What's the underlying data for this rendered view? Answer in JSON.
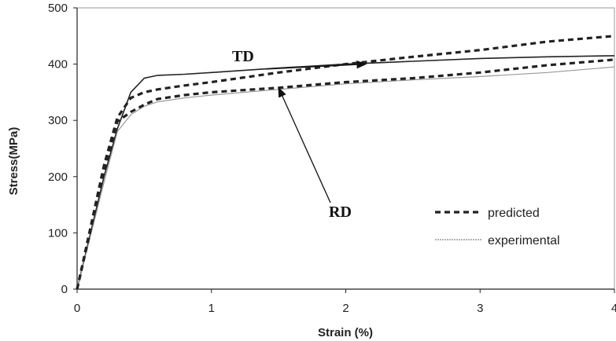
{
  "chart_data": {
    "type": "line",
    "xlabel": "Strain (%)",
    "ylabel": "Stress(MPa)",
    "xlim": [
      0,
      4
    ],
    "ylim": [
      0,
      500
    ],
    "x_ticks": [
      "0",
      "1",
      "2",
      "3",
      "4"
    ],
    "y_ticks": [
      "0",
      "100",
      "200",
      "300",
      "400",
      "500"
    ],
    "grid": false,
    "legend_position": "bottom-right",
    "legend": [
      {
        "label": "predicted",
        "style": "dashed-thick",
        "color": "#222222"
      },
      {
        "label": "experimental",
        "style": "thin-gray",
        "color": "#999999"
      }
    ],
    "annotations": [
      {
        "text": "TD",
        "points_to": [
          2.15,
          400
        ]
      },
      {
        "text": "RD",
        "points_to": [
          1.5,
          358
        ]
      }
    ],
    "series": [
      {
        "direction": "TD",
        "kind": "experimental",
        "color": "#222222",
        "x": [
          0,
          0.1,
          0.2,
          0.3,
          0.4,
          0.5,
          0.6,
          0.8,
          1.0,
          1.5,
          2.0,
          2.5,
          3.0,
          3.5,
          4.0
        ],
        "y": [
          0,
          100,
          200,
          285,
          350,
          375,
          380,
          382,
          385,
          393,
          400,
          405,
          410,
          413,
          415
        ]
      },
      {
        "direction": "TD",
        "kind": "predicted",
        "color": "#222222",
        "x": [
          0,
          0.1,
          0.2,
          0.3,
          0.4,
          0.5,
          0.6,
          0.8,
          1.0,
          1.5,
          2.0,
          2.5,
          3.0,
          3.5,
          4.0
        ],
        "y": [
          0,
          110,
          220,
          305,
          340,
          350,
          355,
          362,
          368,
          385,
          400,
          413,
          425,
          440,
          450
        ]
      },
      {
        "direction": "RD",
        "kind": "experimental",
        "color": "#999999",
        "x": [
          0,
          0.1,
          0.2,
          0.3,
          0.4,
          0.5,
          0.6,
          0.8,
          1.0,
          1.5,
          2.0,
          2.5,
          3.0,
          3.5,
          4.0
        ],
        "y": [
          0,
          95,
          190,
          280,
          310,
          325,
          333,
          340,
          345,
          355,
          365,
          372,
          378,
          385,
          395
        ]
      },
      {
        "direction": "RD",
        "kind": "predicted",
        "color": "#222222",
        "x": [
          0,
          0.1,
          0.2,
          0.3,
          0.4,
          0.5,
          0.6,
          0.8,
          1.0,
          1.5,
          2.0,
          2.5,
          3.0,
          3.5,
          4.0
        ],
        "y": [
          0,
          105,
          210,
          298,
          315,
          328,
          338,
          345,
          350,
          358,
          368,
          375,
          385,
          398,
          408
        ]
      }
    ]
  }
}
